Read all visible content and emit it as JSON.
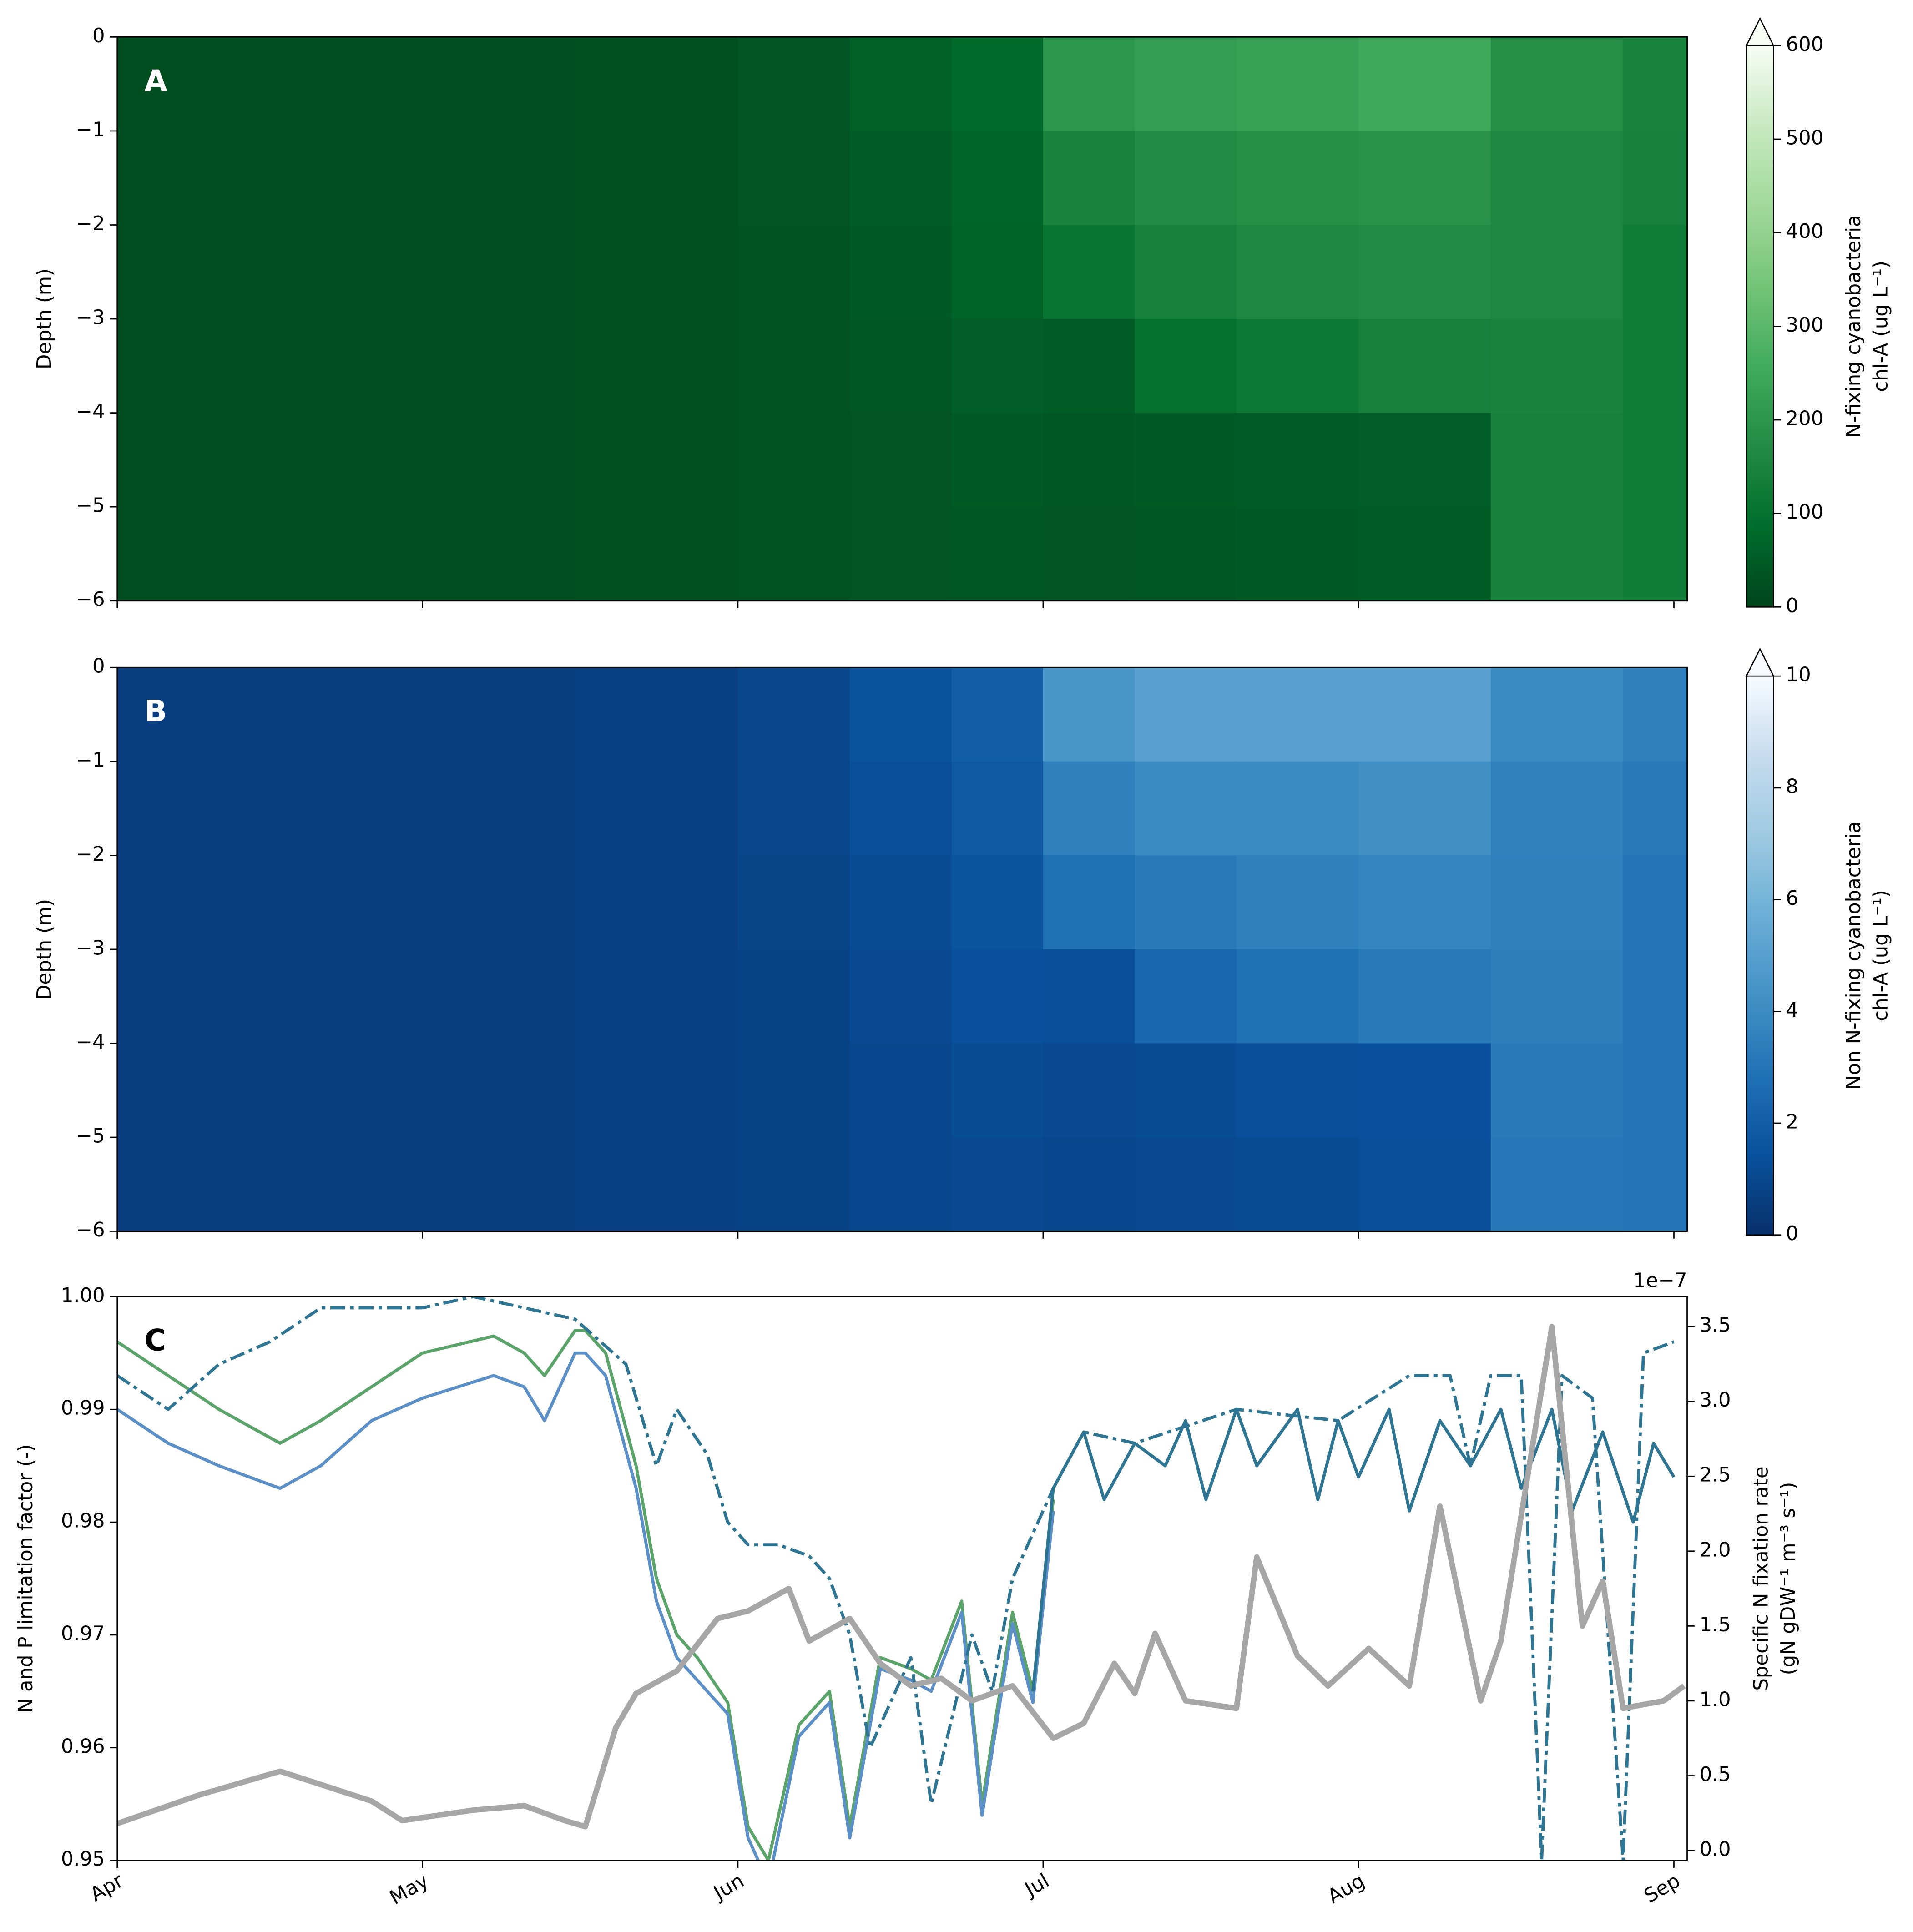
{
  "chart_data": [
    {
      "type": "heatmap",
      "label": "A",
      "ylabel": "Depth (m)",
      "x_edges": [
        0,
        15,
        30,
        45,
        61,
        72,
        82,
        91,
        100,
        110,
        122,
        135,
        148,
        154.3
      ],
      "depth_edges": [
        0,
        -1,
        -2,
        -3,
        -4,
        -5,
        -6
      ],
      "z": [
        [
          20,
          20,
          20,
          25,
          35,
          60,
          80,
          200,
          220,
          230,
          250,
          180,
          150
        ],
        [
          20,
          20,
          20,
          25,
          35,
          50,
          70,
          150,
          170,
          180,
          190,
          160,
          140
        ],
        [
          20,
          20,
          20,
          25,
          30,
          45,
          65,
          110,
          140,
          160,
          170,
          160,
          130
        ],
        [
          20,
          20,
          20,
          25,
          30,
          40,
          55,
          50,
          100,
          120,
          140,
          150,
          130
        ],
        [
          20,
          20,
          20,
          25,
          30,
          35,
          45,
          40,
          45,
          50,
          55,
          140,
          130
        ],
        [
          20,
          20,
          20,
          25,
          30,
          35,
          40,
          35,
          40,
          45,
          50,
          140,
          130
        ]
      ],
      "xlim": [
        0,
        154.3
      ],
      "xticks": [
        0,
        30,
        61,
        91,
        122,
        153
      ],
      "ylim": [
        -6,
        0
      ],
      "yticks": [
        {
          "value": -6,
          "label": "−6"
        },
        {
          "value": -5,
          "label": "−5"
        },
        {
          "value": -4,
          "label": "−4"
        },
        {
          "value": -3,
          "label": "−3"
        },
        {
          "value": -2,
          "label": "−2"
        },
        {
          "value": -1,
          "label": "−1"
        },
        0
      ],
      "colorbar": {
        "label": [
          "N-fixing cyanobacteria",
          "chl-A (ug L⁻¹)"
        ],
        "lim": [
          0,
          600
        ],
        "ticks": [
          0,
          100,
          200,
          300,
          400,
          500,
          600
        ],
        "extend": "max",
        "colormap": [
          "#00441b",
          "#006d2c",
          "#238b45",
          "#41ab5d",
          "#74c476",
          "#a1d99b",
          "#c7e9c0",
          "#f7fcf5"
        ]
      }
    },
    {
      "type": "heatmap",
      "label": "B",
      "ylabel": "Depth (m)",
      "x_edges": [
        0,
        15,
        30,
        45,
        61,
        72,
        82,
        91,
        100,
        110,
        122,
        135,
        148,
        154.3
      ],
      "depth_edges": [
        0,
        -1,
        -2,
        -3,
        -4,
        -5,
        -6
      ],
      "z": [
        [
          0.6,
          0.6,
          0.6,
          0.7,
          0.9,
          1.5,
          2,
          4.5,
          5,
          5,
          5,
          4,
          3.5
        ],
        [
          0.6,
          0.6,
          0.6,
          0.7,
          0.9,
          1.3,
          1.8,
          3.5,
          4,
          4,
          4.2,
          3.6,
          3.2
        ],
        [
          0.6,
          0.6,
          0.6,
          0.7,
          0.85,
          1.2,
          1.6,
          2.8,
          3.2,
          3.5,
          3.7,
          3.5,
          3
        ],
        [
          0.6,
          0.6,
          0.6,
          0.7,
          0.8,
          1.1,
          1.4,
          1.3,
          2.4,
          2.8,
          3.2,
          3.4,
          3
        ],
        [
          0.6,
          0.6,
          0.6,
          0.7,
          0.8,
          1,
          1.2,
          1.1,
          1.2,
          1.3,
          1.4,
          3.2,
          3
        ],
        [
          0.6,
          0.6,
          0.6,
          0.7,
          0.8,
          1,
          1.1,
          1,
          1.1,
          1.2,
          1.3,
          3.1,
          3
        ]
      ],
      "xlim": [
        0,
        154.3
      ],
      "xticks": [
        0,
        30,
        61,
        91,
        122,
        153
      ],
      "ylim": [
        -6,
        0
      ],
      "yticks": [
        {
          "value": -6,
          "label": "−6"
        },
        {
          "value": -5,
          "label": "−5"
        },
        {
          "value": -4,
          "label": "−4"
        },
        {
          "value": -3,
          "label": "−3"
        },
        {
          "value": -2,
          "label": "−2"
        },
        {
          "value": -1,
          "label": "−1"
        },
        0
      ],
      "colorbar": {
        "label": [
          "Non N-fixing cyanobacteria",
          "chl-A (ug L⁻¹)"
        ],
        "lim": [
          0,
          10
        ],
        "ticks": [
          0,
          2,
          4,
          6,
          8,
          10
        ],
        "extend": "max",
        "colormap": [
          "#08306b",
          "#08519c",
          "#2171b5",
          "#4292c6",
          "#6baed6",
          "#9ecae1",
          "#c6dbef",
          "#f7fbff"
        ]
      }
    },
    {
      "type": "line",
      "label": "C",
      "ylabel": "N and P limitation factor (-)",
      "y2label": [
        "Specific N fixation rate",
        "(gN gDW⁻¹ m⁻³ s⁻¹)"
      ],
      "y2_offset_label": "1e−7",
      "xlim": [
        0,
        154.3
      ],
      "xticks": [
        {
          "value": 0,
          "label": "Apr"
        },
        {
          "value": 30,
          "label": "May"
        },
        {
          "value": 61,
          "label": "Jun"
        },
        {
          "value": 91,
          "label": "Jul"
        },
        {
          "value": 122,
          "label": "Aug"
        },
        {
          "value": 153,
          "label": "Sep"
        }
      ],
      "ylim": [
        0.95,
        1.0
      ],
      "yticks": [
        0.95,
        0.96,
        0.97,
        0.98,
        0.99,
        {
          "value": 1,
          "label": "1.00"
        }
      ],
      "y2lim": [
        -0.066,
        3.7
      ],
      "y2ticks": [
        {
          "value": 0,
          "label": "0.0"
        },
        0.5,
        {
          "value": 1,
          "label": "1.0"
        },
        1.5,
        {
          "value": 2,
          "label": "2.0"
        },
        2.5,
        {
          "value": 3,
          "label": "3.0"
        },
        3.5
      ],
      "series": [
        {
          "color": "#5aa469",
          "style": "solid",
          "x": [
            0,
            5,
            10,
            16,
            20,
            25,
            30,
            37,
            40,
            42,
            45,
            46,
            48,
            51,
            53,
            55,
            57,
            60,
            62,
            64,
            67,
            70,
            72,
            75,
            78,
            80,
            83,
            85,
            88,
            90,
            92
          ],
          "values": [
            0.996,
            0.993,
            0.99,
            0.987,
            0.989,
            0.992,
            0.995,
            0.9965,
            0.995,
            0.993,
            0.997,
            0.997,
            0.995,
            0.985,
            0.975,
            0.97,
            0.968,
            0.964,
            0.953,
            0.95,
            0.962,
            0.965,
            0.953,
            0.968,
            0.967,
            0.966,
            0.973,
            0.955,
            0.972,
            0.965,
            0.982
          ]
        },
        {
          "color": "#5b8fc7",
          "style": "solid",
          "x": [
            0,
            5,
            10,
            16,
            20,
            25,
            30,
            37,
            40,
            42,
            45,
            46,
            48,
            51,
            53,
            55,
            57,
            60,
            62,
            64,
            67,
            70,
            72,
            75,
            78,
            80,
            83,
            85,
            88,
            90,
            92
          ],
          "values": [
            0.99,
            0.987,
            0.985,
            0.983,
            0.985,
            0.989,
            0.991,
            0.993,
            0.992,
            0.989,
            0.995,
            0.995,
            0.993,
            0.983,
            0.973,
            0.968,
            0.966,
            0.963,
            0.952,
            0.948,
            0.961,
            0.964,
            0.952,
            0.967,
            0.966,
            0.965,
            0.972,
            0.954,
            0.971,
            0.964,
            0.981
          ]
        },
        {
          "color": "#2e7593",
          "style": "solid",
          "x": [
            90,
            92,
            95,
            97,
            100,
            103,
            105,
            107,
            110,
            112,
            116,
            118,
            120,
            122,
            125,
            127,
            130,
            133,
            136,
            138,
            141,
            143,
            146,
            149,
            151,
            153
          ],
          "values": [
            0.965,
            0.983,
            0.988,
            0.982,
            0.987,
            0.985,
            0.989,
            0.982,
            0.99,
            0.985,
            0.99,
            0.982,
            0.989,
            0.984,
            0.99,
            0.981,
            0.989,
            0.985,
            0.99,
            0.983,
            0.99,
            0.981,
            0.988,
            0.98,
            0.987,
            0.984
          ]
        },
        {
          "color": "#2e7593",
          "style": "dashdot",
          "x": [
            0,
            5,
            10,
            15,
            20,
            25,
            30,
            35,
            40,
            45,
            50,
            53,
            55,
            58,
            60,
            62,
            65,
            68,
            70,
            72,
            74,
            78,
            80,
            84,
            86,
            88,
            92,
            95,
            100,
            110,
            120,
            127,
            131,
            133,
            135,
            138,
            140,
            142,
            145,
            148,
            150,
            153
          ],
          "values": [
            0.993,
            0.99,
            0.994,
            0.996,
            0.999,
            0.999,
            0.999,
            1.0,
            0.999,
            0.998,
            0.994,
            0.985,
            0.99,
            0.986,
            0.98,
            0.978,
            0.978,
            0.977,
            0.975,
            0.97,
            0.96,
            0.968,
            0.955,
            0.97,
            0.965,
            0.975,
            0.983,
            0.988,
            0.987,
            0.99,
            0.989,
            0.993,
            0.993,
            0.985,
            0.993,
            0.993,
            0.95,
            0.993,
            0.991,
            0.95,
            0.995,
            0.996
          ]
        },
        {
          "color": "#a6a6a6",
          "style": "thick",
          "axis": "y2",
          "x": [
            0,
            8,
            16,
            25,
            28,
            35,
            40,
            44,
            46,
            49,
            51,
            55,
            59,
            62,
            66,
            68,
            72,
            75,
            78,
            81,
            84,
            88,
            92,
            95,
            98,
            100,
            102,
            105,
            110,
            112,
            116,
            119,
            123,
            127,
            130,
            134,
            136,
            141,
            144,
            146,
            148,
            152,
            154
          ],
          "values": [
            0.18,
            0.37,
            0.53,
            0.33,
            0.2,
            0.27,
            0.3,
            0.2,
            0.16,
            0.82,
            1.05,
            1.2,
            1.55,
            1.6,
            1.75,
            1.4,
            1.55,
            1.25,
            1.1,
            1.15,
            1.0,
            1.1,
            0.75,
            0.85,
            1.25,
            1.05,
            1.45,
            1.0,
            0.95,
            1.96,
            1.3,
            1.1,
            1.35,
            1.1,
            2.3,
            1.0,
            1.4,
            3.5,
            1.5,
            1.8,
            0.95,
            1.0,
            1.1
          ]
        }
      ]
    }
  ]
}
